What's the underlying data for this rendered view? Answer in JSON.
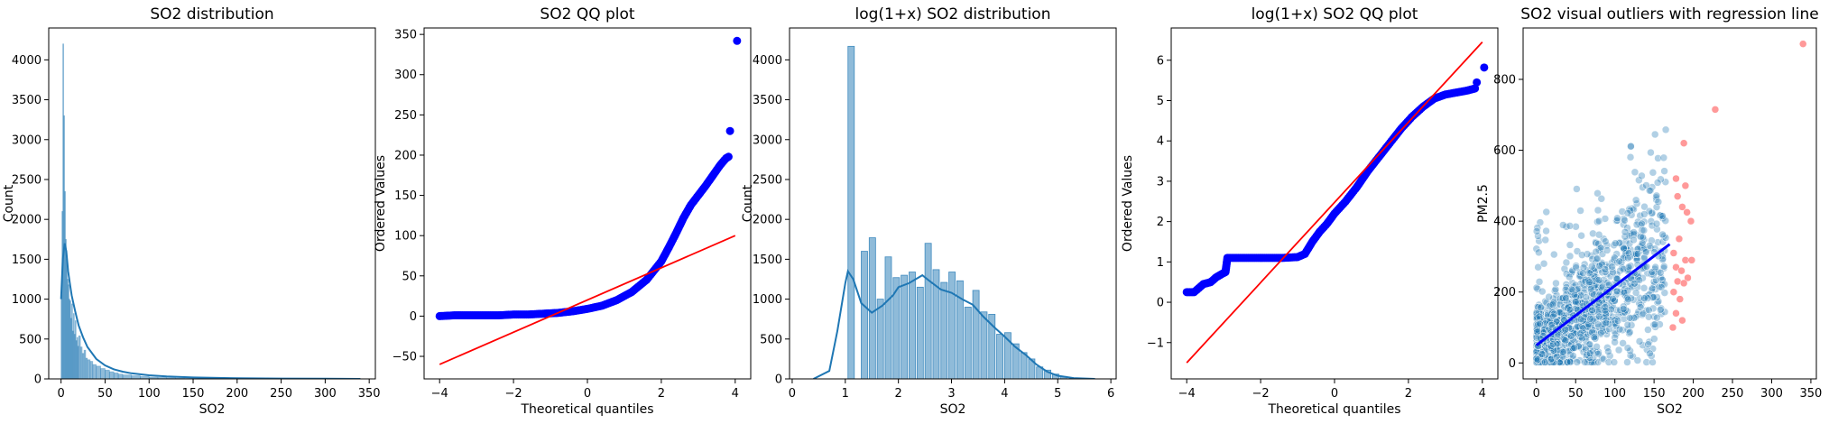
{
  "chart_data": [
    {
      "type": "histogram",
      "title": "SO2 distribution",
      "xlabel": "SO2",
      "ylabel": "Count",
      "xlim": [
        -14,
        357
      ],
      "ylim": [
        0,
        4400
      ],
      "xticks": [
        0,
        50,
        100,
        150,
        200,
        250,
        300,
        350
      ],
      "yticks": [
        0,
        500,
        1000,
        1500,
        2000,
        2500,
        3000,
        3500,
        4000
      ],
      "bar_color": "#1f77b4",
      "bins": [
        {
          "x": 0,
          "count": 1050
        },
        {
          "x": 1,
          "count": 2100
        },
        {
          "x": 2,
          "count": 4200
        },
        {
          "x": 3,
          "count": 3300
        },
        {
          "x": 4,
          "count": 2350
        },
        {
          "x": 5,
          "count": 1750
        },
        {
          "x": 6,
          "count": 1500
        },
        {
          "x": 7,
          "count": 1250
        },
        {
          "x": 8,
          "count": 1180
        },
        {
          "x": 9,
          "count": 1000
        },
        {
          "x": 10,
          "count": 980
        },
        {
          "x": 11,
          "count": 760
        },
        {
          "x": 12,
          "count": 940
        },
        {
          "x": 13,
          "count": 600
        },
        {
          "x": 14,
          "count": 820
        },
        {
          "x": 15,
          "count": 560
        },
        {
          "x": 16,
          "count": 730
        },
        {
          "x": 17,
          "count": 480
        },
        {
          "x": 18,
          "count": 520
        },
        {
          "x": 19,
          "count": 410
        },
        {
          "x": 20,
          "count": 540
        },
        {
          "x": 22,
          "count": 400
        },
        {
          "x": 24,
          "count": 320
        },
        {
          "x": 26,
          "count": 360
        },
        {
          "x": 28,
          "count": 260
        },
        {
          "x": 30,
          "count": 240
        },
        {
          "x": 33,
          "count": 220
        },
        {
          "x": 36,
          "count": 180
        },
        {
          "x": 40,
          "count": 160
        },
        {
          "x": 45,
          "count": 130
        },
        {
          "x": 50,
          "count": 110
        },
        {
          "x": 55,
          "count": 90
        },
        {
          "x": 60,
          "count": 75
        },
        {
          "x": 65,
          "count": 60
        },
        {
          "x": 70,
          "count": 50
        },
        {
          "x": 80,
          "count": 40
        },
        {
          "x": 90,
          "count": 30
        },
        {
          "x": 100,
          "count": 22
        },
        {
          "x": 110,
          "count": 18
        },
        {
          "x": 120,
          "count": 14
        },
        {
          "x": 130,
          "count": 10
        },
        {
          "x": 140,
          "count": 8
        },
        {
          "x": 150,
          "count": 6
        },
        {
          "x": 160,
          "count": 5
        },
        {
          "x": 170,
          "count": 4
        },
        {
          "x": 180,
          "count": 3
        },
        {
          "x": 190,
          "count": 3
        },
        {
          "x": 200,
          "count": 2
        }
      ],
      "kde": [
        [
          0,
          1000
        ],
        [
          2,
          1500
        ],
        [
          4,
          1700
        ],
        [
          6,
          1600
        ],
        [
          8,
          1350
        ],
        [
          10,
          1200
        ],
        [
          12,
          1050
        ],
        [
          14,
          950
        ],
        [
          16,
          850
        ],
        [
          18,
          760
        ],
        [
          20,
          670
        ],
        [
          25,
          520
        ],
        [
          30,
          400
        ],
        [
          40,
          250
        ],
        [
          50,
          170
        ],
        [
          60,
          120
        ],
        [
          70,
          90
        ],
        [
          80,
          70
        ],
        [
          100,
          45
        ],
        [
          120,
          30
        ],
        [
          150,
          18
        ],
        [
          200,
          8
        ],
        [
          250,
          4
        ],
        [
          300,
          2
        ],
        [
          340,
          0
        ]
      ]
    },
    {
      "type": "scatter",
      "title": "SO2 QQ plot",
      "xlabel": "Theoretical quantiles",
      "ylabel": "Ordered Values",
      "xlim": [
        -4.42,
        4.42
      ],
      "ylim": [
        -78,
        358
      ],
      "xticks": [
        -4,
        -2,
        0,
        2,
        4
      ],
      "yticks": [
        -50,
        0,
        50,
        100,
        150,
        200,
        250,
        300,
        350
      ],
      "point_color": "#0000ff",
      "line_color": "#ff0000",
      "fit_line": [
        [
          -4,
          -60
        ],
        [
          4,
          100
        ]
      ],
      "points": [
        [
          -4.0,
          0
        ],
        [
          -3.6,
          1
        ],
        [
          -3.2,
          1
        ],
        [
          -2.8,
          1
        ],
        [
          -2.4,
          1
        ],
        [
          -2.0,
          2
        ],
        [
          -1.6,
          2
        ],
        [
          -1.2,
          3
        ],
        [
          -0.8,
          4
        ],
        [
          -0.4,
          6
        ],
        [
          0.0,
          9
        ],
        [
          0.4,
          13
        ],
        [
          0.8,
          20
        ],
        [
          1.2,
          30
        ],
        [
          1.6,
          45
        ],
        [
          2.0,
          68
        ],
        [
          2.2,
          85
        ],
        [
          2.4,
          103
        ],
        [
          2.6,
          122
        ],
        [
          2.8,
          138
        ],
        [
          3.0,
          150
        ],
        [
          3.2,
          162
        ],
        [
          3.4,
          175
        ],
        [
          3.6,
          188
        ],
        [
          3.75,
          196
        ],
        [
          3.82,
          198
        ],
        [
          3.86,
          230
        ],
        [
          4.05,
          342
        ]
      ]
    },
    {
      "type": "histogram",
      "title": "log(1+x) SO2 distribution",
      "xlabel": "SO2",
      "ylabel": "Count",
      "xlim": [
        -0.05,
        6.1
      ],
      "ylim": [
        0,
        4400
      ],
      "xticks": [
        0,
        1,
        2,
        3,
        4,
        5,
        6
      ],
      "yticks": [
        0,
        500,
        1000,
        1500,
        2000,
        2500,
        3000,
        3500,
        4000
      ],
      "bar_color": "#1f77b4",
      "bins": [
        {
          "x": 1.05,
          "count": 4170
        },
        {
          "x": 1.3,
          "count": 1600
        },
        {
          "x": 1.45,
          "count": 1770
        },
        {
          "x": 1.6,
          "count": 1000
        },
        {
          "x": 1.75,
          "count": 1530
        },
        {
          "x": 1.9,
          "count": 1270
        },
        {
          "x": 2.05,
          "count": 1300
        },
        {
          "x": 2.2,
          "count": 1340
        },
        {
          "x": 2.35,
          "count": 1150
        },
        {
          "x": 2.5,
          "count": 1700
        },
        {
          "x": 2.65,
          "count": 1370
        },
        {
          "x": 2.8,
          "count": 1210
        },
        {
          "x": 2.95,
          "count": 1340
        },
        {
          "x": 3.1,
          "count": 1230
        },
        {
          "x": 3.25,
          "count": 900
        },
        {
          "x": 3.4,
          "count": 1110
        },
        {
          "x": 3.55,
          "count": 840
        },
        {
          "x": 3.7,
          "count": 810
        },
        {
          "x": 3.85,
          "count": 560
        },
        {
          "x": 4.0,
          "count": 580
        },
        {
          "x": 4.15,
          "count": 440
        },
        {
          "x": 4.3,
          "count": 330
        },
        {
          "x": 4.45,
          "count": 250
        },
        {
          "x": 4.6,
          "count": 150
        },
        {
          "x": 4.75,
          "count": 110
        },
        {
          "x": 4.9,
          "count": 60
        },
        {
          "x": 5.05,
          "count": 30
        }
      ],
      "kde": [
        [
          0.4,
          0
        ],
        [
          0.7,
          100
        ],
        [
          0.85,
          600
        ],
        [
          1.0,
          1200
        ],
        [
          1.05,
          1350
        ],
        [
          1.15,
          1250
        ],
        [
          1.3,
          950
        ],
        [
          1.5,
          830
        ],
        [
          1.7,
          920
        ],
        [
          1.9,
          1050
        ],
        [
          2.0,
          1150
        ],
        [
          2.2,
          1200
        ],
        [
          2.45,
          1300
        ],
        [
          2.6,
          1220
        ],
        [
          2.8,
          1120
        ],
        [
          3.0,
          1080
        ],
        [
          3.2,
          1000
        ],
        [
          3.4,
          930
        ],
        [
          3.6,
          780
        ],
        [
          3.8,
          650
        ],
        [
          4.0,
          530
        ],
        [
          4.2,
          400
        ],
        [
          4.4,
          300
        ],
        [
          4.6,
          180
        ],
        [
          4.8,
          90
        ],
        [
          5.0,
          40
        ],
        [
          5.3,
          10
        ],
        [
          5.7,
          0
        ]
      ]
    },
    {
      "type": "scatter",
      "title": "log(1+x) SO2 QQ plot",
      "xlabel": "Theoretical quantiles",
      "ylabel": "Ordered Values",
      "xlim": [
        -4.42,
        4.42
      ],
      "ylim": [
        -1.9,
        6.8
      ],
      "xticks": [
        -4,
        -2,
        0,
        2,
        4
      ],
      "yticks": [
        -1,
        0,
        1,
        2,
        3,
        4,
        5,
        6
      ],
      "point_color": "#0000ff",
      "line_color": "#ff0000",
      "fit_line": [
        [
          -4,
          -1.5
        ],
        [
          4,
          6.45
        ]
      ],
      "points": [
        [
          -4.0,
          0.25
        ],
        [
          -3.8,
          0.25
        ],
        [
          -3.55,
          0.45
        ],
        [
          -3.35,
          0.5
        ],
        [
          -3.2,
          0.62
        ],
        [
          -3.05,
          0.7
        ],
        [
          -2.95,
          0.75
        ],
        [
          -2.9,
          1.1
        ],
        [
          -2.6,
          1.1
        ],
        [
          -2.2,
          1.1
        ],
        [
          -1.8,
          1.1
        ],
        [
          -1.4,
          1.1
        ],
        [
          -1.0,
          1.12
        ],
        [
          -0.8,
          1.2
        ],
        [
          -0.6,
          1.5
        ],
        [
          -0.4,
          1.75
        ],
        [
          -0.2,
          1.95
        ],
        [
          0.0,
          2.2
        ],
        [
          0.3,
          2.5
        ],
        [
          0.6,
          2.85
        ],
        [
          0.9,
          3.25
        ],
        [
          1.2,
          3.6
        ],
        [
          1.5,
          3.95
        ],
        [
          1.8,
          4.3
        ],
        [
          2.1,
          4.6
        ],
        [
          2.4,
          4.85
        ],
        [
          2.7,
          5.05
        ],
        [
          3.0,
          5.15
        ],
        [
          3.3,
          5.2
        ],
        [
          3.6,
          5.25
        ],
        [
          3.8,
          5.3
        ],
        [
          3.85,
          5.45
        ],
        [
          4.05,
          5.82
        ]
      ]
    },
    {
      "type": "scatter",
      "title": "SO2 visual outliers with regression line",
      "xlabel": "SO2",
      "ylabel": "PM2.5",
      "xlim": [
        -17,
        357
      ],
      "ylim": [
        -45,
        945
      ],
      "xticks": [
        0,
        50,
        100,
        150,
        200,
        250,
        300,
        350
      ],
      "yticks": [
        0,
        200,
        400,
        600,
        800
      ],
      "inlier_color": "#1f77b4",
      "outlier_color": "#ff0000",
      "regression_color": "#0000ff",
      "regression_line": [
        [
          0,
          50
        ],
        [
          170,
          335
        ]
      ],
      "outliers": [
        [
          340,
          900
        ],
        [
          228,
          715
        ],
        [
          188,
          620
        ],
        [
          178,
          520
        ],
        [
          190,
          500
        ],
        [
          180,
          470
        ],
        [
          186,
          440
        ],
        [
          192,
          425
        ],
        [
          197,
          400
        ],
        [
          182,
          350
        ],
        [
          175,
          310
        ],
        [
          190,
          290
        ],
        [
          198,
          290
        ],
        [
          178,
          270
        ],
        [
          185,
          260
        ],
        [
          193,
          240
        ],
        [
          180,
          230
        ],
        [
          188,
          225
        ],
        [
          175,
          200
        ],
        [
          183,
          180
        ],
        [
          178,
          140
        ],
        [
          186,
          120
        ],
        [
          174,
          100
        ]
      ]
    }
  ]
}
